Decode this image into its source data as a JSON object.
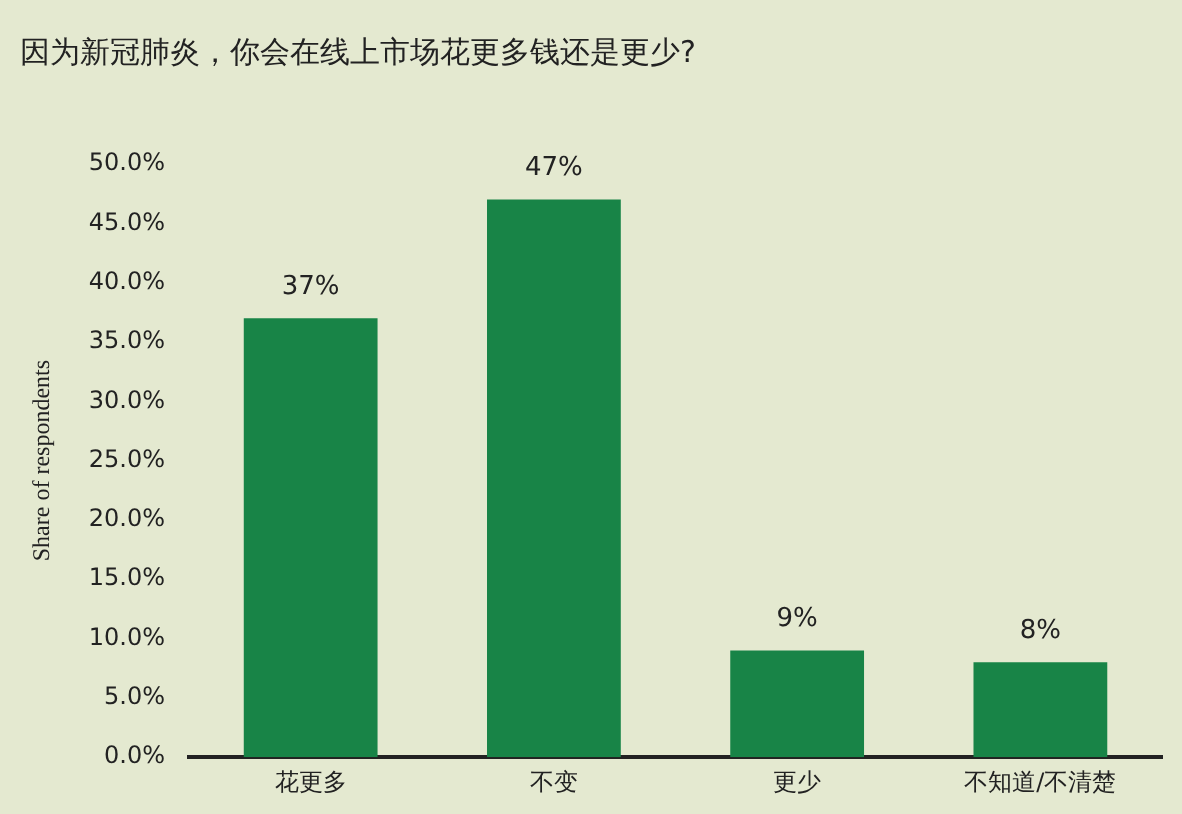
{
  "chart_data": {
    "type": "bar",
    "title": "因为新冠肺炎，你会在线上市场花更多钱还是更少?",
    "ylabel": "Share of respondents",
    "categories": [
      "花更多",
      "不变",
      "更少",
      "不知道/不清楚"
    ],
    "values": [
      37,
      47,
      9,
      8
    ],
    "value_labels": [
      "37%",
      "47%",
      "9%",
      "8%"
    ],
    "color": "#188447",
    "ylim": [
      0,
      50
    ],
    "yticks": [
      {
        "value": 0,
        "label": "0.0%"
      },
      {
        "value": 5,
        "label": "5.0%"
      },
      {
        "value": 10,
        "label": "10.0%"
      },
      {
        "value": 15,
        "label": "15.0%"
      },
      {
        "value": 20,
        "label": "20.0%"
      },
      {
        "value": 25,
        "label": "25.0%"
      },
      {
        "value": 30,
        "label": "30.0%"
      },
      {
        "value": 35,
        "label": "35.0%"
      },
      {
        "value": 40,
        "label": "40.0%"
      },
      {
        "value": 45,
        "label": "45.0%"
      },
      {
        "value": 50,
        "label": "50.0%"
      }
    ],
    "grid": false,
    "legend": false
  }
}
